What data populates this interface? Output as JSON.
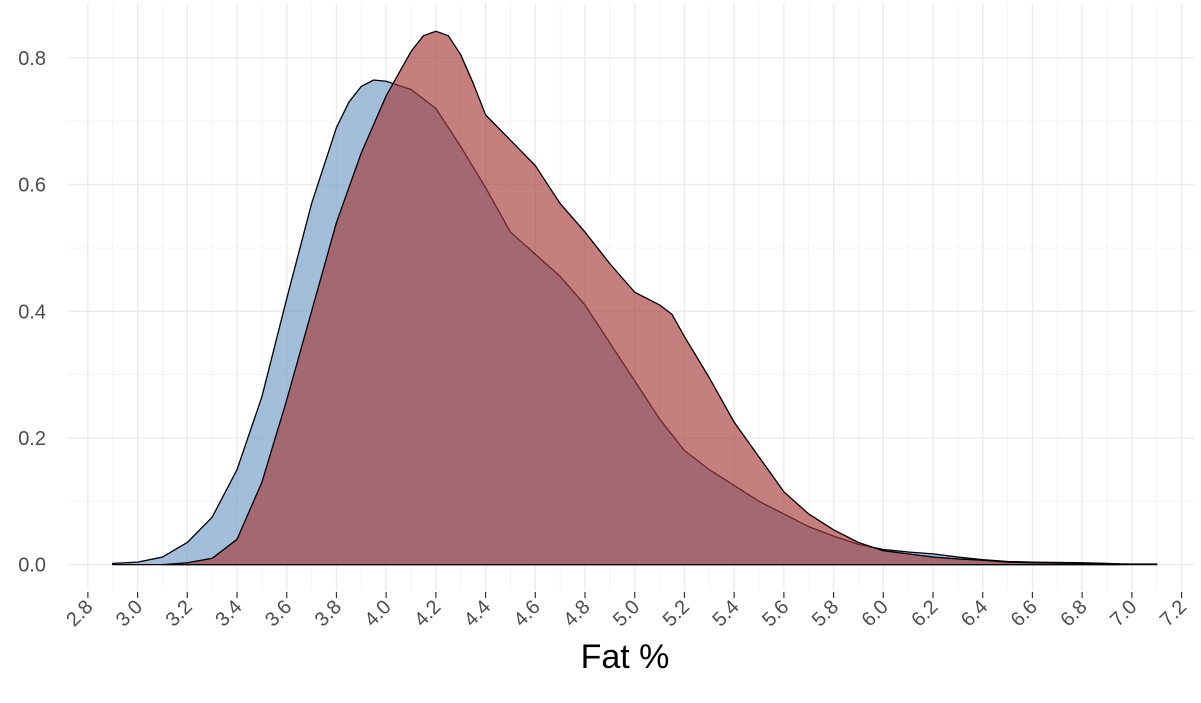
{
  "chart_data": {
    "type": "area",
    "title": "",
    "xlabel": "Fat %",
    "ylabel": "",
    "xlim": [
      2.72,
      7.25
    ],
    "ylim": [
      -0.04,
      0.885
    ],
    "x_ticks": [
      "2.8",
      "3.0",
      "3.2",
      "3.4",
      "3.6",
      "3.8",
      "4.0",
      "4.2",
      "4.4",
      "4.6",
      "4.8",
      "5.0",
      "5.2",
      "5.4",
      "5.6",
      "5.8",
      "6.0",
      "6.2",
      "6.4",
      "6.6",
      "6.8",
      "7.0",
      "7.2"
    ],
    "y_ticks": [
      "0.0",
      "0.2",
      "0.4",
      "0.6",
      "0.8"
    ],
    "x_minor_step": 0.1,
    "y_minor_step": 0.1,
    "grid": true,
    "series": [
      {
        "color": "#7ba3cc",
        "opacity": 0.7,
        "points": [
          [
            2.9,
            0.002
          ],
          [
            3.0,
            0.004
          ],
          [
            3.1,
            0.012
          ],
          [
            3.2,
            0.035
          ],
          [
            3.3,
            0.075
          ],
          [
            3.4,
            0.15
          ],
          [
            3.5,
            0.265
          ],
          [
            3.6,
            0.42
          ],
          [
            3.7,
            0.57
          ],
          [
            3.8,
            0.69
          ],
          [
            3.85,
            0.73
          ],
          [
            3.9,
            0.755
          ],
          [
            3.95,
            0.765
          ],
          [
            4.0,
            0.763
          ],
          [
            4.1,
            0.75
          ],
          [
            4.2,
            0.72
          ],
          [
            4.3,
            0.66
          ],
          [
            4.4,
            0.595
          ],
          [
            4.5,
            0.525
          ],
          [
            4.6,
            0.49
          ],
          [
            4.7,
            0.455
          ],
          [
            4.8,
            0.41
          ],
          [
            4.9,
            0.35
          ],
          [
            5.0,
            0.29
          ],
          [
            5.1,
            0.23
          ],
          [
            5.2,
            0.18
          ],
          [
            5.3,
            0.15
          ],
          [
            5.4,
            0.125
          ],
          [
            5.5,
            0.1
          ],
          [
            5.6,
            0.08
          ],
          [
            5.7,
            0.06
          ],
          [
            5.8,
            0.045
          ],
          [
            5.9,
            0.032
          ],
          [
            6.0,
            0.024
          ],
          [
            6.1,
            0.02
          ],
          [
            6.2,
            0.017
          ],
          [
            6.3,
            0.012
          ],
          [
            6.4,
            0.008
          ],
          [
            6.5,
            0.005
          ],
          [
            6.6,
            0.004
          ],
          [
            6.8,
            0.003
          ],
          [
            6.9,
            0.002
          ],
          [
            6.95,
            0.001
          ]
        ]
      },
      {
        "color": "#a63a3a",
        "opacity": 0.65,
        "points": [
          [
            3.1,
            0.0
          ],
          [
            3.2,
            0.003
          ],
          [
            3.3,
            0.01
          ],
          [
            3.4,
            0.04
          ],
          [
            3.5,
            0.13
          ],
          [
            3.6,
            0.26
          ],
          [
            3.7,
            0.4
          ],
          [
            3.8,
            0.54
          ],
          [
            3.9,
            0.65
          ],
          [
            4.0,
            0.74
          ],
          [
            4.05,
            0.775
          ],
          [
            4.1,
            0.81
          ],
          [
            4.15,
            0.835
          ],
          [
            4.2,
            0.842
          ],
          [
            4.25,
            0.835
          ],
          [
            4.3,
            0.805
          ],
          [
            4.35,
            0.76
          ],
          [
            4.4,
            0.71
          ],
          [
            4.5,
            0.67
          ],
          [
            4.6,
            0.63
          ],
          [
            4.7,
            0.57
          ],
          [
            4.8,
            0.525
          ],
          [
            4.9,
            0.475
          ],
          [
            5.0,
            0.43
          ],
          [
            5.1,
            0.41
          ],
          [
            5.15,
            0.395
          ],
          [
            5.2,
            0.36
          ],
          [
            5.3,
            0.295
          ],
          [
            5.4,
            0.225
          ],
          [
            5.5,
            0.17
          ],
          [
            5.6,
            0.115
          ],
          [
            5.7,
            0.08
          ],
          [
            5.8,
            0.055
          ],
          [
            5.9,
            0.035
          ],
          [
            6.0,
            0.022
          ],
          [
            6.1,
            0.017
          ],
          [
            6.2,
            0.012
          ],
          [
            6.3,
            0.009
          ],
          [
            6.4,
            0.007
          ],
          [
            6.5,
            0.004
          ],
          [
            6.6,
            0.003
          ],
          [
            6.8,
            0.002
          ],
          [
            7.0,
            0.001
          ],
          [
            7.1,
            0.001
          ]
        ]
      }
    ]
  }
}
